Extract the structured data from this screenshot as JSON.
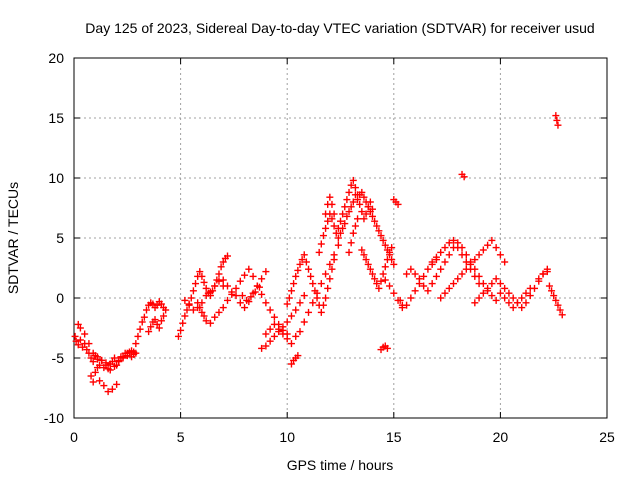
{
  "chart_data": {
    "type": "scatter",
    "title": "Day 125 of 2023, Sidereal Day-to-day VTEC variation (SDTVAR) for receiver usud",
    "xlabel": "GPS time / hours",
    "ylabel": "SDTVAR / TECUs",
    "xlim": [
      0,
      25
    ],
    "ylim": [
      -10,
      20
    ],
    "xticks": [
      0,
      5,
      10,
      15,
      20,
      25
    ],
    "yticks": [
      -10,
      -5,
      0,
      5,
      10,
      15,
      20
    ],
    "grid": true,
    "marker": "+",
    "color": "#ff0000",
    "series": [
      {
        "name": "SDTVAR",
        "x": [
          0.05,
          0.1,
          0.2,
          0.3,
          0.4,
          0.5,
          0.6,
          0.7,
          0.8,
          0.9,
          1.0,
          1.1,
          1.2,
          1.3,
          1.4,
          1.5,
          1.6,
          1.7,
          1.8,
          1.9,
          2.0,
          2.1,
          2.2,
          2.3,
          2.4,
          2.5,
          2.6,
          2.7,
          2.8,
          2.9,
          0.2,
          0.3,
          0.5,
          0.7,
          0.9,
          1.1,
          1.3,
          1.5,
          1.7,
          1.9,
          2.1,
          2.3,
          2.5,
          2.7,
          0.8,
          0.9,
          1.0,
          1.1,
          1.2,
          1.4,
          1.6,
          1.8,
          2.0,
          2.8,
          2.9,
          3.0,
          3.1,
          3.2,
          3.3,
          3.4,
          3.5,
          3.6,
          3.7,
          3.8,
          3.9,
          4.0,
          4.1,
          4.2,
          4.3,
          3.5,
          3.6,
          3.7,
          3.8,
          3.9,
          4.0,
          4.1,
          4.2,
          4.9,
          5.0,
          5.1,
          5.2,
          5.3,
          5.4,
          5.5,
          5.6,
          5.7,
          5.8,
          5.9,
          6.0,
          6.1,
          6.2,
          6.3,
          6.4,
          6.5,
          6.6,
          6.7,
          6.8,
          6.9,
          7.0,
          7.1,
          7.2,
          5.2,
          5.4,
          5.6,
          5.8,
          6.0,
          6.2,
          6.4,
          6.6,
          6.8,
          7.0,
          5.8,
          5.9,
          6.0,
          6.1,
          6.2,
          6.4,
          6.6,
          6.8,
          7.0,
          7.2,
          7.4,
          7.6,
          7.8,
          8.0,
          8.2,
          8.4,
          8.6,
          8.8,
          9.0,
          9.2,
          9.4,
          9.6,
          9.8,
          10.0,
          7.0,
          7.2,
          7.4,
          7.6,
          7.8,
          8.0,
          8.2,
          8.4,
          8.6,
          8.8,
          9.0,
          7.9,
          8.1,
          8.3,
          8.5,
          8.7,
          8.8,
          9.0,
          9.2,
          9.4,
          9.6,
          9.8,
          10.0,
          10.2,
          10.4,
          10.6,
          10.8,
          9.0,
          9.2,
          9.4,
          9.6,
          9.8,
          10.0,
          10.2,
          10.4,
          10.6,
          10.0,
          10.1,
          10.2,
          10.3,
          10.4,
          10.5,
          10.6,
          10.7,
          10.8,
          10.9,
          11.0,
          11.1,
          11.2,
          11.3,
          11.4,
          11.5,
          11.6,
          11.7,
          11.8,
          11.9,
          12.0,
          12.1,
          12.2,
          10.2,
          10.3,
          10.4,
          10.5,
          10.8,
          11.0,
          11.2,
          11.4,
          11.6,
          11.8,
          12.0,
          12.2,
          12.4,
          11.5,
          11.6,
          11.7,
          11.8,
          11.9,
          12.0,
          12.1,
          12.2,
          12.3,
          12.4,
          12.5,
          12.6,
          12.7,
          12.8,
          12.9,
          13.0,
          13.1,
          13.2,
          13.3,
          13.4,
          13.5,
          13.6,
          13.7,
          13.8,
          13.9,
          14.0,
          11.8,
          11.9,
          12.0,
          12.1,
          12.2,
          12.4,
          12.5,
          12.6,
          12.7,
          12.8,
          12.9,
          13.0,
          13.1,
          13.2,
          12.9,
          13.0,
          13.1,
          13.2,
          13.3,
          13.3,
          13.4,
          13.5,
          13.6,
          13.7,
          13.8,
          13.9,
          14.0,
          14.1,
          14.2,
          14.3,
          14.4,
          14.5,
          14.6,
          14.7,
          14.8,
          14.9,
          15.0,
          13.5,
          13.6,
          13.7,
          13.8,
          13.9,
          14.0,
          14.1,
          14.2,
          14.3,
          14.4,
          14.5,
          14.6,
          14.7,
          14.8,
          14.9,
          14.4,
          14.5,
          14.6,
          14.7,
          14.6,
          14.8,
          15.0,
          15.2,
          15.4,
          15.6,
          15.8,
          16.0,
          16.2,
          16.4,
          16.6,
          16.8,
          17.0,
          15.0,
          15.1,
          15.2,
          15.3,
          15.4,
          15.6,
          15.8,
          16.0,
          16.2,
          16.4,
          16.6,
          16.8,
          17.0,
          17.2,
          17.4,
          17.6,
          17.8,
          18.0,
          18.2,
          18.4,
          18.6,
          18.8,
          19.0,
          19.2,
          19.4,
          19.6,
          19.8,
          16.8,
          17.0,
          17.2,
          17.4,
          17.6,
          17.8,
          18.0,
          18.2,
          18.4,
          18.6,
          18.8,
          19.0,
          17.2,
          17.4,
          17.6,
          17.8,
          18.0,
          18.2,
          18.4,
          18.6,
          18.8,
          19.0,
          19.2,
          19.4,
          19.6,
          19.8,
          20.0,
          20.2,
          18.2,
          18.3,
          18.8,
          19.0,
          19.2,
          19.4,
          19.6,
          19.8,
          20.0,
          20.2,
          20.4,
          20.6,
          20.8,
          21.0,
          21.2,
          21.4,
          21.6,
          21.8,
          22.0,
          22.2,
          20.0,
          20.2,
          20.4,
          20.6,
          20.8,
          21.0,
          21.2,
          21.4,
          21.8,
          22.0,
          22.2,
          22.3,
          22.4,
          22.5,
          22.6,
          22.7,
          22.8,
          22.9,
          22.6,
          22.65,
          22.7
        ],
        "y": [
          -3.2,
          -3.6,
          -3.9,
          -3.5,
          -4.1,
          -3.8,
          -4.3,
          -4.6,
          -5.0,
          -5.3,
          -4.8,
          -5.1,
          -5.6,
          -5.2,
          -5.8,
          -5.4,
          -5.9,
          -5.5,
          -5.3,
          -5.0,
          -5.6,
          -5.2,
          -4.9,
          -5.0,
          -4.6,
          -4.8,
          -4.5,
          -4.9,
          -4.7,
          -4.6,
          -2.2,
          -2.5,
          -3.0,
          -3.8,
          -4.6,
          -4.9,
          -5.2,
          -5.6,
          -6.0,
          -5.7,
          -5.3,
          -4.9,
          -4.6,
          -4.4,
          -6.5,
          -7.0,
          -6.2,
          -5.8,
          -6.9,
          -7.3,
          -7.8,
          -7.6,
          -7.2,
          -4.5,
          -3.8,
          -3.2,
          -2.6,
          -2.0,
          -1.6,
          -1.0,
          -0.6,
          -0.4,
          -0.5,
          -0.8,
          -0.6,
          -0.3,
          -0.5,
          -0.8,
          -1.0,
          -2.8,
          -2.4,
          -2.0,
          -1.8,
          -2.2,
          -2.5,
          -1.9,
          -1.5,
          -3.2,
          -2.7,
          -2.1,
          -1.5,
          -1.0,
          -0.5,
          0.0,
          0.6,
          1.2,
          1.8,
          2.2,
          1.8,
          1.3,
          0.8,
          0.4,
          0.2,
          0.6,
          1.0,
          1.5,
          2.0,
          2.6,
          3.0,
          3.3,
          3.5,
          -0.2,
          -0.6,
          -1.0,
          -0.8,
          -0.4,
          0.2,
          0.5,
          1.0,
          1.4,
          1.0,
          -0.4,
          -0.8,
          -1.2,
          -1.5,
          -1.9,
          -2.1,
          -1.6,
          -1.2,
          -0.8,
          -0.2,
          0.3,
          0.8,
          1.4,
          1.9,
          2.4,
          1.8,
          1.0,
          0.3,
          -0.4,
          -1.0,
          -1.6,
          -2.2,
          -2.7,
          -3.0,
          1.5,
          1.0,
          0.5,
          0.2,
          -0.4,
          -0.8,
          -0.3,
          0.4,
          1.0,
          1.6,
          2.2,
          0.2,
          -0.2,
          0.1,
          0.5,
          0.9,
          -4.2,
          -4.0,
          -3.6,
          -3.2,
          -2.8,
          -2.4,
          -2.0,
          -1.5,
          -1.0,
          -0.4,
          0.2,
          -3.0,
          -2.6,
          -2.2,
          -2.6,
          -3.0,
          -3.4,
          -3.8,
          -3.2,
          -2.8,
          -0.5,
          0.0,
          0.6,
          1.2,
          1.8,
          2.3,
          2.8,
          3.2,
          3.6,
          3.0,
          2.4,
          1.8,
          1.2,
          0.6,
          0.0,
          -0.6,
          -1.2,
          -0.6,
          0.0,
          0.8,
          1.6,
          2.4,
          3.2,
          -5.5,
          -5.2,
          -5.0,
          -4.8,
          -2.0,
          -1.2,
          -0.4,
          0.4,
          1.2,
          2.0,
          2.8,
          3.6,
          4.4,
          3.8,
          4.5,
          5.2,
          5.8,
          6.4,
          7.0,
          6.6,
          6.0,
          5.4,
          5.8,
          6.4,
          7.0,
          7.6,
          8.2,
          8.8,
          9.4,
          9.8,
          9.2,
          8.6,
          7.8,
          7.2,
          6.6,
          7.0,
          7.6,
          8.0,
          7.4,
          7.0,
          7.8,
          8.4,
          7.8,
          7.0,
          5.0,
          5.4,
          5.8,
          6.2,
          6.8,
          7.2,
          7.6,
          8.0,
          8.6,
          3.8,
          4.6,
          5.4,
          6.0,
          6.6,
          8.2,
          8.6,
          8.8,
          8.4,
          8.0,
          7.6,
          7.2,
          6.8,
          6.4,
          6.0,
          5.6,
          5.2,
          4.8,
          4.4,
          4.0,
          3.6,
          3.2,
          2.8,
          4.0,
          3.6,
          3.2,
          2.8,
          2.4,
          2.0,
          1.6,
          1.2,
          0.8,
          1.4,
          2.0,
          2.6,
          3.2,
          3.8,
          4.2,
          -4.3,
          -4.1,
          -4.0,
          -4.2,
          1.5,
          1.0,
          0.4,
          -0.2,
          -0.8,
          -0.6,
          0.0,
          0.6,
          1.2,
          1.8,
          2.4,
          2.8,
          3.2,
          8.2,
          8.0,
          7.8,
          -0.2,
          -0.6,
          2.0,
          2.4,
          2.0,
          1.6,
          1.0,
          0.6,
          1.2,
          1.8,
          2.4,
          3.0,
          3.6,
          4.2,
          4.6,
          4.2,
          3.6,
          3.0,
          2.4,
          1.8,
          1.2,
          0.6,
          0.2,
          -0.2,
          3.0,
          3.4,
          3.8,
          4.2,
          4.6,
          4.8,
          4.2,
          3.6,
          3.0,
          2.4,
          1.8,
          1.2,
          0.0,
          0.4,
          0.8,
          1.2,
          1.6,
          2.0,
          2.4,
          2.8,
          3.2,
          3.6,
          4.0,
          4.4,
          4.8,
          4.2,
          3.6,
          3.0,
          10.3,
          10.1,
          -0.4,
          0.0,
          0.4,
          0.8,
          1.2,
          1.6,
          1.2,
          0.8,
          0.4,
          0.0,
          -0.4,
          -0.8,
          -0.4,
          0.2,
          0.8,
          1.4,
          2.0,
          2.4,
          0.4,
          0.0,
          -0.4,
          -0.8,
          -0.4,
          0.0,
          0.4,
          0.8,
          1.6,
          2.0,
          2.2,
          1.0,
          0.6,
          0.2,
          -0.2,
          -0.6,
          -1.0,
          -1.4,
          15.2,
          14.8,
          14.4
        ]
      }
    ]
  }
}
